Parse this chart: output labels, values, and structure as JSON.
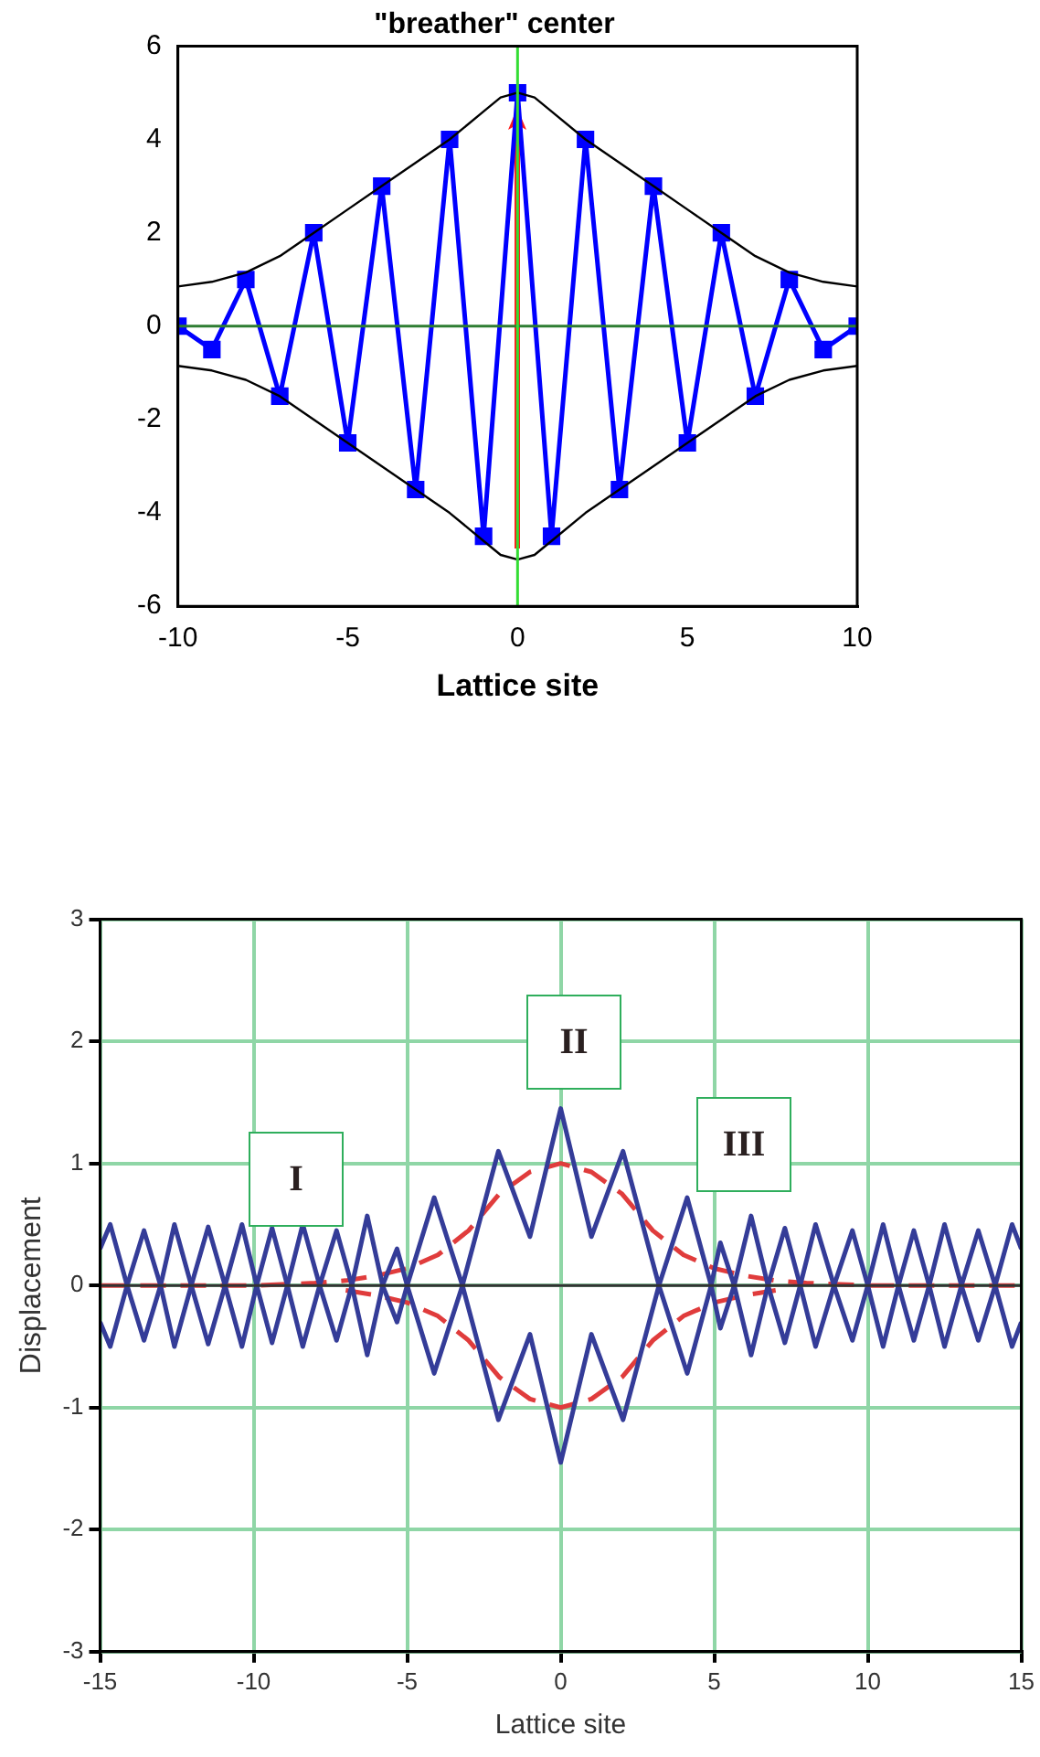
{
  "chart_data": [
    {
      "type": "line",
      "title": "\"breather\" center",
      "xlabel": "Lattice site",
      "marker": "square",
      "grid": false,
      "legend": false,
      "xlim": [
        -10,
        10
      ],
      "xticks": [
        -10,
        -5,
        0,
        5,
        10
      ],
      "ylim": [
        -6,
        6
      ],
      "yticks": [
        -6,
        -4,
        -2,
        0,
        2,
        4,
        6
      ],
      "ref_lines": [
        {
          "axis": "y",
          "value": 0,
          "color": "#2e7d32"
        },
        {
          "axis": "x",
          "value": 0,
          "color": "#33dd33"
        }
      ],
      "series": [
        {
          "color": "#000000",
          "marker": "none",
          "x": [
            -10,
            -9,
            -8,
            -7,
            -6,
            -5,
            -4,
            -3,
            -2,
            -1,
            -0.5,
            0,
            0.5,
            1,
            2,
            3,
            4,
            5,
            6,
            7,
            8,
            9,
            10
          ],
          "values": [
            0.85,
            0.95,
            1.15,
            1.5,
            2,
            2.5,
            3,
            3.5,
            4,
            4.6,
            4.9,
            5,
            4.9,
            4.6,
            4,
            3.5,
            3,
            2.5,
            2,
            1.5,
            1.15,
            0.95,
            0.85
          ]
        },
        {
          "color": "#000000",
          "marker": "none",
          "x": [
            -10,
            -9,
            -8,
            -7,
            -6,
            -5,
            -4,
            -3,
            -2,
            -1,
            -0.5,
            0,
            0.5,
            1,
            2,
            3,
            4,
            5,
            6,
            7,
            8,
            9,
            10
          ],
          "values": [
            -0.85,
            -0.95,
            -1.15,
            -1.5,
            -2,
            -2.5,
            -3,
            -3.5,
            -4,
            -4.6,
            -4.9,
            -5,
            -4.9,
            -4.6,
            -4,
            -3.5,
            -3,
            -2.5,
            -2,
            -1.5,
            -1.15,
            -0.95,
            -0.85
          ]
        },
        {
          "color": "#0000ff",
          "x": [
            -10,
            -9,
            -8,
            -7,
            -6,
            -5,
            -4,
            -3,
            -2,
            -1,
            0,
            1,
            2,
            3,
            4,
            5,
            6,
            7,
            8,
            9,
            10
          ],
          "values": [
            0,
            -0.5,
            1,
            -1.5,
            2,
            -2.5,
            3,
            -3.5,
            4,
            -4.5,
            5,
            -4.5,
            4,
            -3.5,
            3,
            -2.5,
            2,
            -1.5,
            1,
            -0.5,
            0
          ]
        }
      ]
    },
    {
      "type": "line",
      "xlabel": "Lattice site",
      "ylabel": "Displacement",
      "marker": "none",
      "grid": true,
      "legend": false,
      "xlim": [
        -15,
        15
      ],
      "xticks": [
        -15,
        -10,
        -5,
        0,
        5,
        10,
        15
      ],
      "ylim": [
        -3,
        3
      ],
      "yticks": [
        -3,
        -2,
        -1,
        0,
        1,
        2,
        3
      ],
      "ref_lines": [
        {
          "axis": "y",
          "value": 0,
          "color": "#333333"
        }
      ],
      "annotations": [
        "I",
        "II",
        "III"
      ],
      "series": [
        {
          "color": "#343c98",
          "x": [
            -15,
            -14.67,
            -14.12,
            -13.57,
            -13.03,
            -12.58,
            -12.03,
            -11.48,
            -10.93,
            -10.38,
            -9.9,
            -9.4,
            -8.9,
            -8.4,
            -7.85,
            -7.3,
            -6.8,
            -6.3,
            -5.8,
            -5.33,
            -5,
            -4.12,
            -3.2,
            -2.03,
            -1,
            0,
            1,
            2.03,
            3.2,
            4.12,
            4.9,
            5.2,
            5.65,
            6.2,
            6.75,
            7.3,
            7.8,
            8.3,
            8.9,
            9.5,
            10,
            10.5,
            11,
            11.5,
            12,
            12.5,
            13.05,
            13.6,
            14.15,
            14.7,
            15
          ],
          "values": [
            0.3,
            0.5,
            0,
            -0.45,
            0,
            0.5,
            0,
            -0.48,
            0,
            0.5,
            0,
            -0.47,
            0,
            0.5,
            0,
            -0.45,
            0,
            0.57,
            0,
            -0.3,
            0,
            0.72,
            0,
            1.1,
            0.4,
            1.45,
            0.4,
            1.1,
            0,
            0.72,
            0,
            -0.35,
            0,
            0.57,
            0,
            -0.47,
            0,
            0.5,
            0,
            -0.45,
            0,
            0.5,
            0,
            -0.45,
            0,
            0.5,
            0,
            -0.45,
            0,
            0.5,
            0.3
          ]
        },
        {
          "color": "#343c98",
          "x": [
            -15,
            -14.67,
            -14.12,
            -13.57,
            -13.03,
            -12.58,
            -12.03,
            -11.48,
            -10.93,
            -10.38,
            -9.9,
            -9.4,
            -8.9,
            -8.4,
            -7.85,
            -7.3,
            -6.8,
            -6.3,
            -5.8,
            -5.33,
            -5,
            -4.12,
            -3.2,
            -2.03,
            -1,
            0,
            1,
            2.03,
            3.2,
            4.12,
            4.9,
            5.2,
            5.65,
            6.2,
            6.75,
            7.3,
            7.8,
            8.3,
            8.9,
            9.5,
            10,
            10.5,
            11,
            11.5,
            12,
            12.5,
            13.05,
            13.6,
            14.15,
            14.7,
            15
          ],
          "values": [
            -0.3,
            -0.5,
            0,
            0.45,
            0,
            -0.5,
            0,
            0.48,
            0,
            -0.5,
            0,
            0.47,
            0,
            -0.5,
            0,
            0.45,
            0,
            -0.57,
            0,
            0.3,
            0,
            -0.72,
            0,
            -1.1,
            -0.4,
            -1.45,
            -0.4,
            -1.1,
            0,
            -0.72,
            0,
            0.35,
            0,
            -0.57,
            0,
            0.47,
            0,
            -0.5,
            0,
            0.45,
            0,
            -0.5,
            0,
            0.45,
            0,
            -0.5,
            0,
            0.45,
            0,
            -0.5,
            -0.3
          ]
        },
        {
          "color": "#e03c3c",
          "line_style": "dashed",
          "x": [
            -15,
            -10,
            -8,
            -7,
            -6,
            -5,
            -4,
            -3,
            -2,
            -1,
            0,
            1,
            2,
            3,
            4,
            5,
            6,
            7,
            8,
            10,
            15
          ],
          "values": [
            0,
            0,
            0.02,
            0.04,
            0.08,
            0.14,
            0.25,
            0.45,
            0.75,
            0.93,
            1,
            0.93,
            0.75,
            0.45,
            0.25,
            0.14,
            0.08,
            0.04,
            0.02,
            0,
            0
          ]
        },
        {
          "color": "#e03c3c",
          "line_style": "dashed",
          "x": [
            -7,
            -6,
            -5,
            -4,
            -3,
            -2,
            -1,
            0,
            1,
            2,
            3,
            4,
            5,
            6,
            7
          ],
          "values": [
            -0.04,
            -0.08,
            -0.14,
            -0.25,
            -0.45,
            -0.75,
            -0.93,
            -1,
            -0.93,
            -0.75,
            -0.45,
            -0.25,
            -0.14,
            -0.08,
            -0.04
          ]
        }
      ]
    }
  ]
}
